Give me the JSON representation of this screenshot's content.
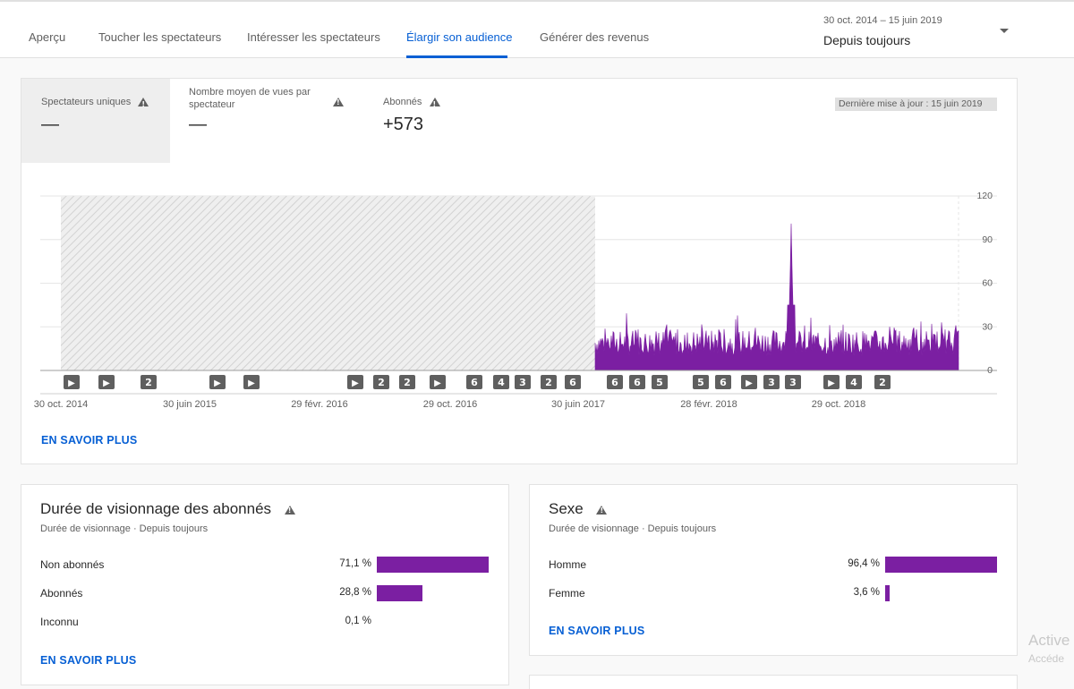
{
  "tabs": [
    {
      "label": "Aperçu"
    },
    {
      "label": "Toucher les spectateurs"
    },
    {
      "label": "Intéresser les spectateurs"
    },
    {
      "label": "Élargir son audience"
    },
    {
      "label": "Générer des revenus"
    }
  ],
  "date_range": {
    "sub": "30 oct. 2014 – 15 juin 2019",
    "main": "Depuis toujours"
  },
  "metrics": [
    {
      "label": "Spectateurs uniques",
      "value": "—"
    },
    {
      "label_line1": "Nombre moyen de vues par",
      "label_line2": "spectateur",
      "value": "—"
    },
    {
      "label": "Abonnés",
      "value": "+573"
    }
  ],
  "last_update": "Dernière mise à jour : 15 juin 2019",
  "chart_data": {
    "type": "area",
    "color": "#7b1fa2",
    "y_ticks": [
      "120",
      "90",
      "60",
      "30",
      "0"
    ],
    "ylim": [
      0,
      120
    ],
    "x_labels": [
      "30 oct. 2014",
      "30 juin 2015",
      "29 févr. 2016",
      "29 oct. 2016",
      "30 juin 2017",
      "28 févr. 2018",
      "29 oct. 2018"
    ],
    "no_data_period": "30 oct. 2014 – juin 2017",
    "peak": {
      "date": "sept. 2018",
      "value": 101
    },
    "typical_range": [
      10,
      40
    ],
    "markers": [
      "▶",
      "▶",
      "2",
      "▶",
      "▶",
      "▶",
      "2",
      "2",
      "▶",
      "6",
      "4",
      "3",
      "2",
      "6",
      "6",
      "6",
      "5",
      "5",
      "6",
      "▶",
      "3",
      "3",
      "▶",
      "4",
      "2"
    ]
  },
  "learn_more": "EN SAVOIR PLUS",
  "watch_time": {
    "title": "Durée de visionnage des abonnés",
    "sub": "Durée de visionnage · Depuis toujours",
    "rows": [
      {
        "label": "Non abonnés",
        "pct": "71,1 %",
        "value": 71.1
      },
      {
        "label": "Abonnés",
        "pct": "28,8 %",
        "value": 28.8
      },
      {
        "label": "Inconnu",
        "pct": "0,1 %",
        "value": 0.1
      }
    ]
  },
  "gender": {
    "title": "Sexe",
    "sub": "Durée de visionnage · Depuis toujours",
    "rows": [
      {
        "label": "Homme",
        "pct": "96,4 %",
        "value": 96.4
      },
      {
        "label": "Femme",
        "pct": "3,6 %",
        "value": 3.6
      }
    ]
  },
  "watermark": {
    "line1": "Active",
    "line2": "Accéde"
  }
}
